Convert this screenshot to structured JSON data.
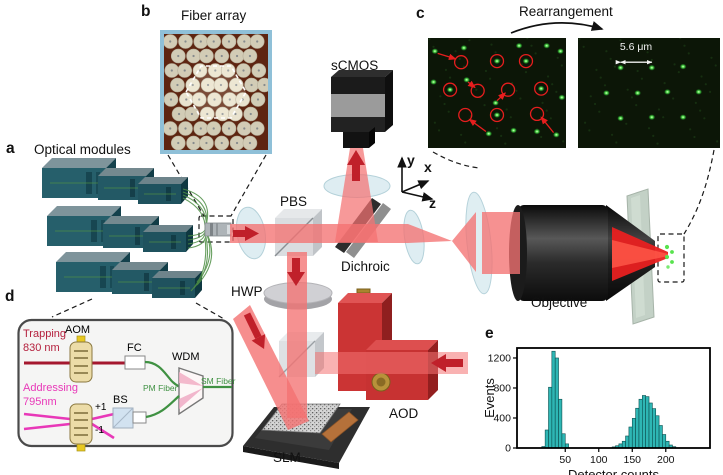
{
  "figure": {
    "panel_a_label": "a",
    "panel_b_label": "b",
    "panel_c_label": "c",
    "panel_d_label": "d",
    "panel_e_label": "e",
    "optical_modules_title": "Optical modules",
    "fiber_array_title": "Fiber array",
    "rearrangement_title": "Rearrangement",
    "scale_label": "5.6 μm",
    "scmos_label": "sCMOS",
    "pbs_label": "PBS",
    "dichroic_label": "Dichroic",
    "hwp_label": "HWP",
    "slm_label": "SLM",
    "aod_label": "AOD",
    "objective_label": "Objective",
    "axis_x": "x",
    "axis_y": "y",
    "axis_z": "z"
  },
  "inset_d": {
    "trapping_line1": "Trapping",
    "trapping_line2": "830 nm",
    "aom_label": "AOM",
    "fc_label": "FC",
    "wdm_label": "WDM",
    "pm_fiber_label": "PM Fiber",
    "sm_fiber_label": "SM Fiber",
    "addressing_line1": "Addressing",
    "addressing_line2": "795nm",
    "bs_label": "BS",
    "plus_order": "+1",
    "minus_order": "-1"
  },
  "tweezer_images": {
    "before": {
      "dots": [
        [
          5,
          12
        ],
        [
          26,
          9
        ],
        [
          66,
          7
        ],
        [
          86,
          7
        ],
        [
          96,
          12
        ],
        [
          4,
          40
        ],
        [
          28,
          38
        ],
        [
          49,
          59
        ],
        [
          97,
          54
        ],
        [
          44,
          87
        ],
        [
          62,
          84
        ],
        [
          79,
          85
        ],
        [
          93,
          88
        ]
      ],
      "filled_circles": [
        [
          50,
          21
        ],
        [
          71,
          21
        ],
        [
          16,
          47
        ],
        [
          82,
          46
        ],
        [
          50,
          70
        ]
      ],
      "empty_circles": [
        [
          24,
          22
        ],
        [
          36,
          48
        ],
        [
          58,
          47
        ],
        [
          27,
          70
        ],
        [
          79,
          69
        ]
      ],
      "arrows": [
        [
          7,
          14,
          20,
          19
        ],
        [
          29,
          40,
          34,
          45
        ],
        [
          50,
          57,
          56,
          50
        ],
        [
          42,
          85,
          30,
          74
        ],
        [
          91,
          86,
          82,
          72
        ]
      ]
    },
    "after": {
      "dots": [
        [
          30,
          27
        ],
        [
          52,
          27
        ],
        [
          74,
          26
        ],
        [
          20,
          50
        ],
        [
          42,
          50
        ],
        [
          63,
          49
        ],
        [
          85,
          49
        ],
        [
          30,
          73
        ],
        [
          52,
          72
        ],
        [
          74,
          72
        ]
      ],
      "scale_from": [
        30,
        22
      ],
      "scale_to": [
        52,
        22
      ]
    }
  },
  "chart_data": {
    "type": "bar",
    "title": "",
    "xlabel": "Detector counts",
    "ylabel": "Events",
    "xlim": [
      -22,
      266
    ],
    "ylim": [
      0,
      1333
    ],
    "xticks": [
      50,
      100,
      150,
      200
    ],
    "yticks": [
      0,
      400,
      800,
      1200
    ],
    "bin_width": 5,
    "bins": [
      [
        15,
        20
      ],
      [
        20,
        240
      ],
      [
        25,
        810
      ],
      [
        30,
        1290
      ],
      [
        35,
        1200
      ],
      [
        40,
        650
      ],
      [
        45,
        190
      ],
      [
        50,
        55
      ],
      [
        120,
        15
      ],
      [
        125,
        30
      ],
      [
        130,
        55
      ],
      [
        135,
        90
      ],
      [
        140,
        160
      ],
      [
        145,
        280
      ],
      [
        150,
        395
      ],
      [
        155,
        530
      ],
      [
        160,
        650
      ],
      [
        165,
        700
      ],
      [
        170,
        685
      ],
      [
        175,
        600
      ],
      [
        180,
        525
      ],
      [
        185,
        430
      ],
      [
        190,
        300
      ],
      [
        195,
        180
      ],
      [
        200,
        90
      ],
      [
        205,
        40
      ],
      [
        210,
        18
      ]
    ],
    "grid": false,
    "legend": null,
    "bar_color": "#2eb6b4",
    "bar_edge": "#0c4f4f"
  },
  "colors": {
    "beam": "#f47272",
    "beam_arrow": "#c0202a",
    "fiber_green": "#4e8f45",
    "module_teal": "#265f6b",
    "aod_red": "#c73232",
    "tweezer_dot": "#46e04a",
    "circle_red": "#e61e1e",
    "hist_teal": "#2eb6b4",
    "inset_trap_red": "#b41f3c",
    "inset_addr_magenta": "#e838b8",
    "fiber_label_green": "#3f9142"
  }
}
